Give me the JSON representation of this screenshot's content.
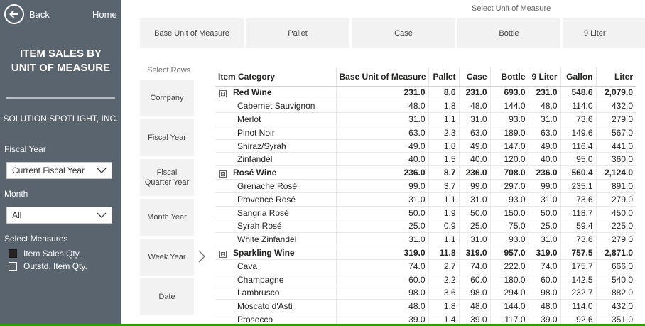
{
  "sidebar": {
    "back_label": "Back",
    "home_label": "Home",
    "title_line1": "ITEM SALES BY",
    "title_line2": "UNIT OF MEASURE",
    "company": "SOLUTION SPOTLIGHT, INC.",
    "fiscal_year_label": "Fiscal Year",
    "fiscal_year_value": "Current Fiscal Year",
    "month_label": "Month",
    "month_value": "All",
    "measures_label": "Select Measures",
    "measures": [
      {
        "label": "Item Sales Qty.",
        "checked": true
      },
      {
        "label": "Outstd. Item Qty.",
        "checked": false
      }
    ]
  },
  "uom": {
    "header": "Select Unit of Measure",
    "options": [
      "Base Unit of Measure",
      "Pallet",
      "Case",
      "Bottle",
      "9 Liter"
    ]
  },
  "rows_selector": {
    "header": "Select Rows",
    "options": [
      "Company",
      "Fiscal Year",
      "Fiscal Quarter Year",
      "Month Year",
      "Week Year",
      "Date"
    ]
  },
  "matrix": {
    "columns": [
      "Item Category",
      "Base Unit of Measure",
      "Pallet",
      "Case",
      "Bottle",
      "9 Liter",
      "Gallon",
      "Liter"
    ],
    "rows": [
      {
        "type": "group",
        "label": "Red Wine",
        "values": [
          "231.0",
          "8.6",
          "231.0",
          "693.0",
          "231.0",
          "548.6",
          "2,079.0"
        ]
      },
      {
        "type": "child",
        "label": "Cabernet Sauvignon",
        "values": [
          "48.0",
          "1.8",
          "48.0",
          "144.0",
          "48.0",
          "114.0",
          "432.0"
        ]
      },
      {
        "type": "child",
        "label": "Merlot",
        "values": [
          "31.0",
          "1.1",
          "31.0",
          "93.0",
          "31.0",
          "73.6",
          "279.0"
        ]
      },
      {
        "type": "child",
        "label": "Pinot Noir",
        "values": [
          "63.0",
          "2.3",
          "63.0",
          "189.0",
          "63.0",
          "149.6",
          "567.0"
        ]
      },
      {
        "type": "child",
        "label": "Shiraz/Syrah",
        "values": [
          "49.0",
          "1.8",
          "49.0",
          "147.0",
          "49.0",
          "116.4",
          "441.0"
        ]
      },
      {
        "type": "child",
        "label": "Zinfandel",
        "values": [
          "40.0",
          "1.5",
          "40.0",
          "120.0",
          "40.0",
          "95.0",
          "360.0"
        ]
      },
      {
        "type": "group",
        "label": "Rosé Wine",
        "values": [
          "236.0",
          "8.7",
          "236.0",
          "708.0",
          "236.0",
          "560.4",
          "2,124.0"
        ]
      },
      {
        "type": "child",
        "label": "Grenache Rosé",
        "values": [
          "99.0",
          "3.7",
          "99.0",
          "297.0",
          "99.0",
          "235.1",
          "891.0"
        ]
      },
      {
        "type": "child",
        "label": "Provence Rosé",
        "values": [
          "31.0",
          "1.1",
          "31.0",
          "93.0",
          "31.0",
          "73.6",
          "279.0"
        ]
      },
      {
        "type": "child",
        "label": "Sangria Rosé",
        "values": [
          "50.0",
          "1.9",
          "50.0",
          "150.0",
          "50.0",
          "118.7",
          "450.0"
        ]
      },
      {
        "type": "child",
        "label": "Syrah Rosé",
        "values": [
          "25.0",
          "0.9",
          "25.0",
          "75.0",
          "25.0",
          "59.4",
          "225.0"
        ]
      },
      {
        "type": "child",
        "label": "White Zinfandel",
        "values": [
          "31.0",
          "1.1",
          "31.0",
          "93.0",
          "31.0",
          "73.6",
          "279.0"
        ]
      },
      {
        "type": "group",
        "label": "Sparkling Wine",
        "values": [
          "319.0",
          "11.8",
          "319.0",
          "957.0",
          "319.0",
          "757.5",
          "2,871.0"
        ]
      },
      {
        "type": "child",
        "label": "Cava",
        "values": [
          "74.0",
          "2.7",
          "74.0",
          "222.0",
          "74.0",
          "175.7",
          "666.0"
        ]
      },
      {
        "type": "child",
        "label": "Champagne",
        "values": [
          "60.0",
          "2.2",
          "60.0",
          "180.0",
          "60.0",
          "142.5",
          "540.0"
        ]
      },
      {
        "type": "child",
        "label": "Lambrusco",
        "values": [
          "98.0",
          "3.6",
          "98.0",
          "294.0",
          "98.0",
          "232.7",
          "882.0"
        ]
      },
      {
        "type": "child",
        "label": "Moscato d'Asti",
        "values": [
          "48.0",
          "1.8",
          "48.0",
          "144.0",
          "48.0",
          "114.0",
          "432.0"
        ]
      },
      {
        "type": "child",
        "label": "Prosecco",
        "values": [
          "39.0",
          "1.4",
          "39.0",
          "117.0",
          "39.0",
          "92.6",
          "351.0"
        ]
      }
    ],
    "expander_symbol": "⊟"
  },
  "colors": {
    "sidebar": "#59646f",
    "accent_line": "#2aa100"
  }
}
